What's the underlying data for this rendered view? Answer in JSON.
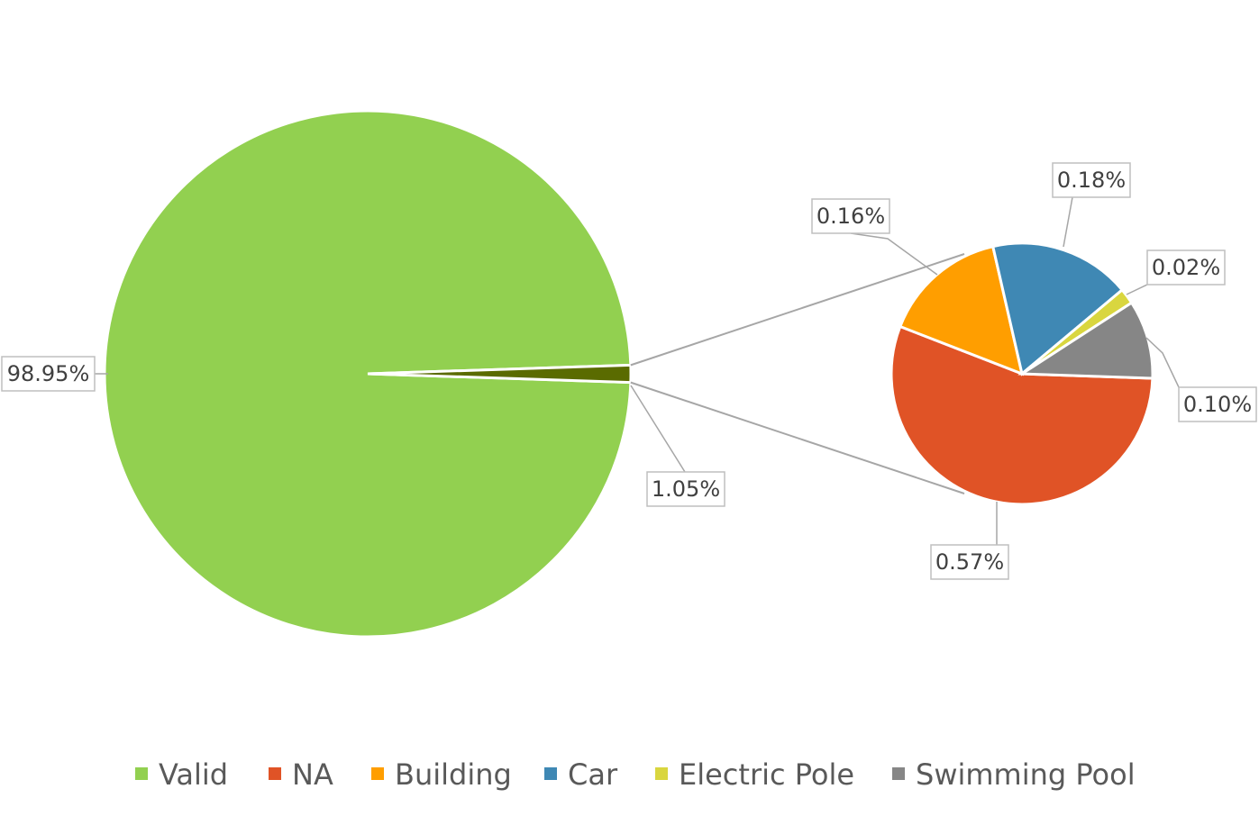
{
  "chart_data": {
    "type": "pie",
    "subtype": "pie-of-pie",
    "main_slices": [
      {
        "name": "Valid",
        "value": 98.95,
        "label": "98.95%",
        "color": "#92d050"
      },
      {
        "name": "",
        "value": 1.05,
        "label": "1.05%",
        "color": "#5a6b00",
        "role": "other-breakdown"
      }
    ],
    "secondary_slices": [
      {
        "name": "NA",
        "value": 0.57,
        "label": "0.57%",
        "color": "#e05326"
      },
      {
        "name": "Building",
        "value": 0.16,
        "label": "0.16%",
        "color": "#ff9e00"
      },
      {
        "name": "Car",
        "value": 0.18,
        "label": "0.18%",
        "color": "#3f88b4"
      },
      {
        "name": "Electric Pole",
        "value": 0.02,
        "label": "0.02%",
        "color": "#d9d63f"
      },
      {
        "name": "Swimming Pool",
        "value": 0.1,
        "label": "0.10%",
        "color": "#868686"
      }
    ],
    "legend": {
      "placement": "bottom",
      "entries": [
        {
          "name": "Valid",
          "color": "#92d050"
        },
        {
          "name": "NA",
          "color": "#e05326"
        },
        {
          "name": "Building",
          "color": "#ff9e00"
        },
        {
          "name": "Car",
          "color": "#3f88b4"
        },
        {
          "name": "Electric Pole",
          "color": "#d9d63f"
        },
        {
          "name": "Swimming Pool",
          "color": "#868686"
        }
      ]
    }
  }
}
